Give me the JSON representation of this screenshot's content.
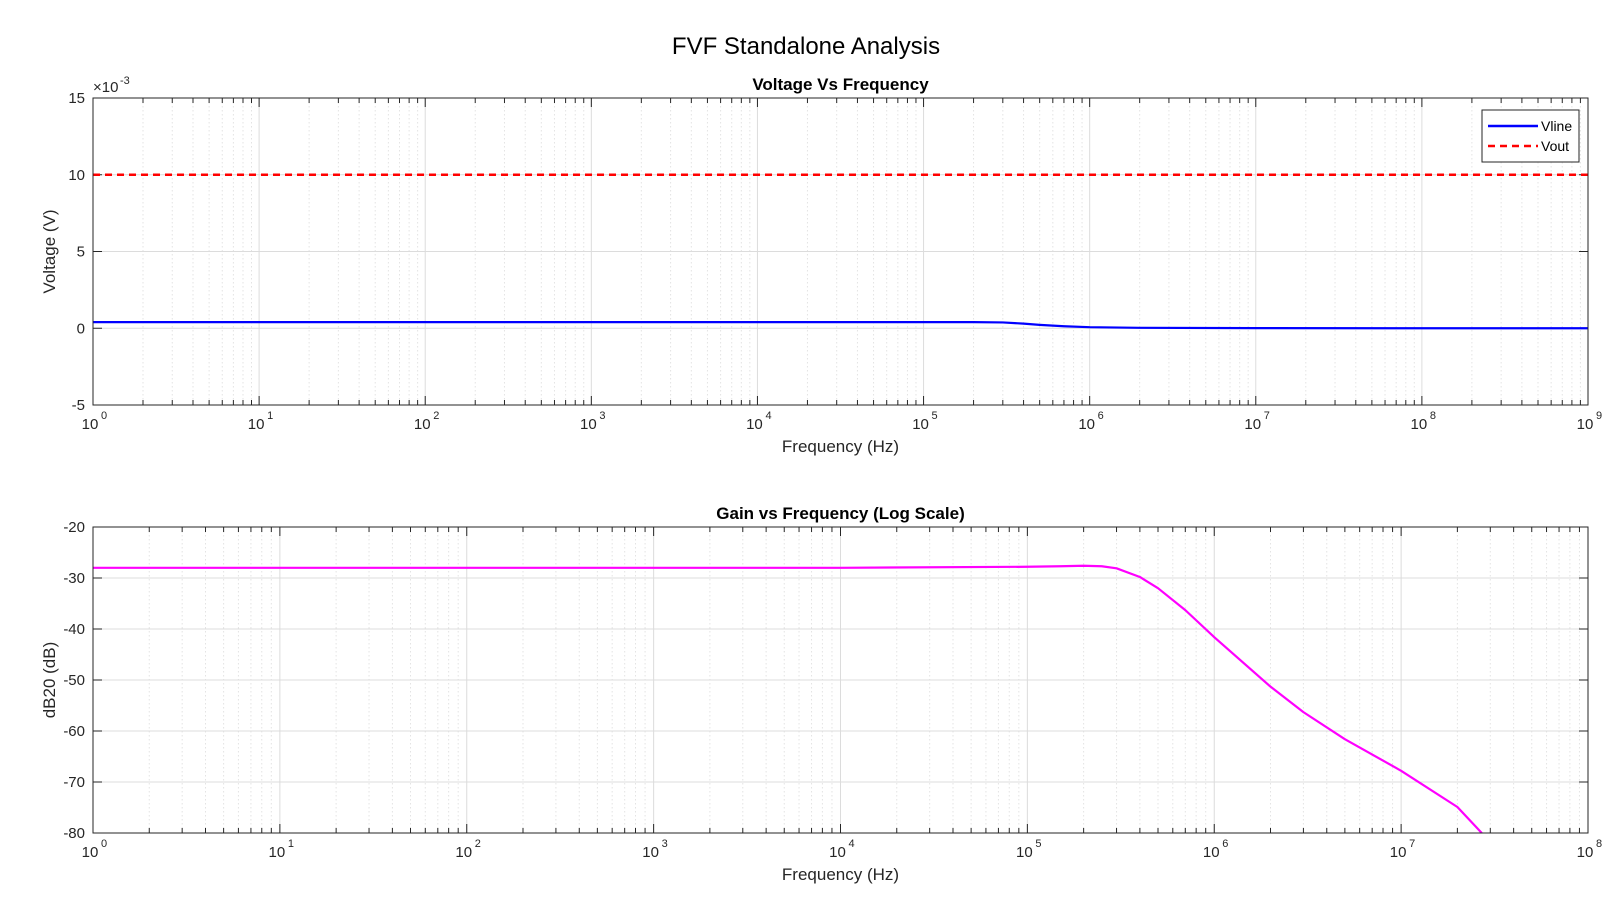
{
  "figure": {
    "title": "FVF Standalone Analysis"
  },
  "chart_data": [
    {
      "type": "line",
      "title": "Voltage Vs Frequency",
      "xlabel": "Frequency (Hz)",
      "ylabel": "Voltage (V)",
      "xscale": "log",
      "xlim": [
        1,
        1000000000
      ],
      "ylim": [
        -5,
        15
      ],
      "y_multiplier_label": "×10",
      "y_multiplier_exp": "-3",
      "x_tick_base": "10",
      "x_ticks_exp": [
        "0",
        "1",
        "2",
        "3",
        "4",
        "5",
        "6",
        "7",
        "8",
        "9"
      ],
      "y_ticks": [
        "-5",
        "0",
        "5",
        "10",
        "15"
      ],
      "grid": true,
      "legend": "top-right",
      "series": [
        {
          "name": "Vline",
          "color": "#0000ff",
          "style": "solid",
          "x": [
            1,
            10,
            100,
            1000,
            10000,
            100000,
            200000,
            300000,
            400000,
            500000,
            700000,
            1000000,
            2000000,
            10000000,
            100000000,
            1000000000
          ],
          "y": [
            0.4,
            0.4,
            0.4,
            0.4,
            0.4,
            0.4,
            0.4,
            0.38,
            0.3,
            0.22,
            0.13,
            0.07,
            0.03,
            0.01,
            0.0,
            0.0
          ]
        },
        {
          "name": "Vout",
          "color": "#ff0000",
          "style": "dashed",
          "x": [
            1,
            1000000000
          ],
          "y": [
            10,
            10
          ]
        }
      ]
    },
    {
      "type": "line",
      "title": "Gain vs Frequency (Log Scale)",
      "xlabel": "Frequency (Hz)",
      "ylabel": "dB20 (dB)",
      "xscale": "log",
      "xlim": [
        1,
        100000000
      ],
      "ylim": [
        -80,
        -20
      ],
      "x_tick_base": "10",
      "x_ticks_exp": [
        "0",
        "1",
        "2",
        "3",
        "4",
        "5",
        "6",
        "7",
        "8"
      ],
      "y_ticks": [
        "-80",
        "-70",
        "-60",
        "-50",
        "-40",
        "-30",
        "-20"
      ],
      "grid": true,
      "series": [
        {
          "color": "#ff00ff",
          "style": "solid",
          "x": [
            1,
            100,
            10000,
            100000,
            150000,
            200000,
            250000,
            300000,
            400000,
            500000,
            700000,
            1000000,
            2000000,
            3000000,
            5000000,
            10000000,
            20000000,
            27000000
          ],
          "y": [
            -28,
            -28,
            -28,
            -27.8,
            -27.7,
            -27.6,
            -27.7,
            -28.1,
            -29.8,
            -32,
            -36.3,
            -41.6,
            -51.3,
            -56.3,
            -61.6,
            -67.8,
            -74.9,
            -80
          ]
        }
      ]
    }
  ]
}
